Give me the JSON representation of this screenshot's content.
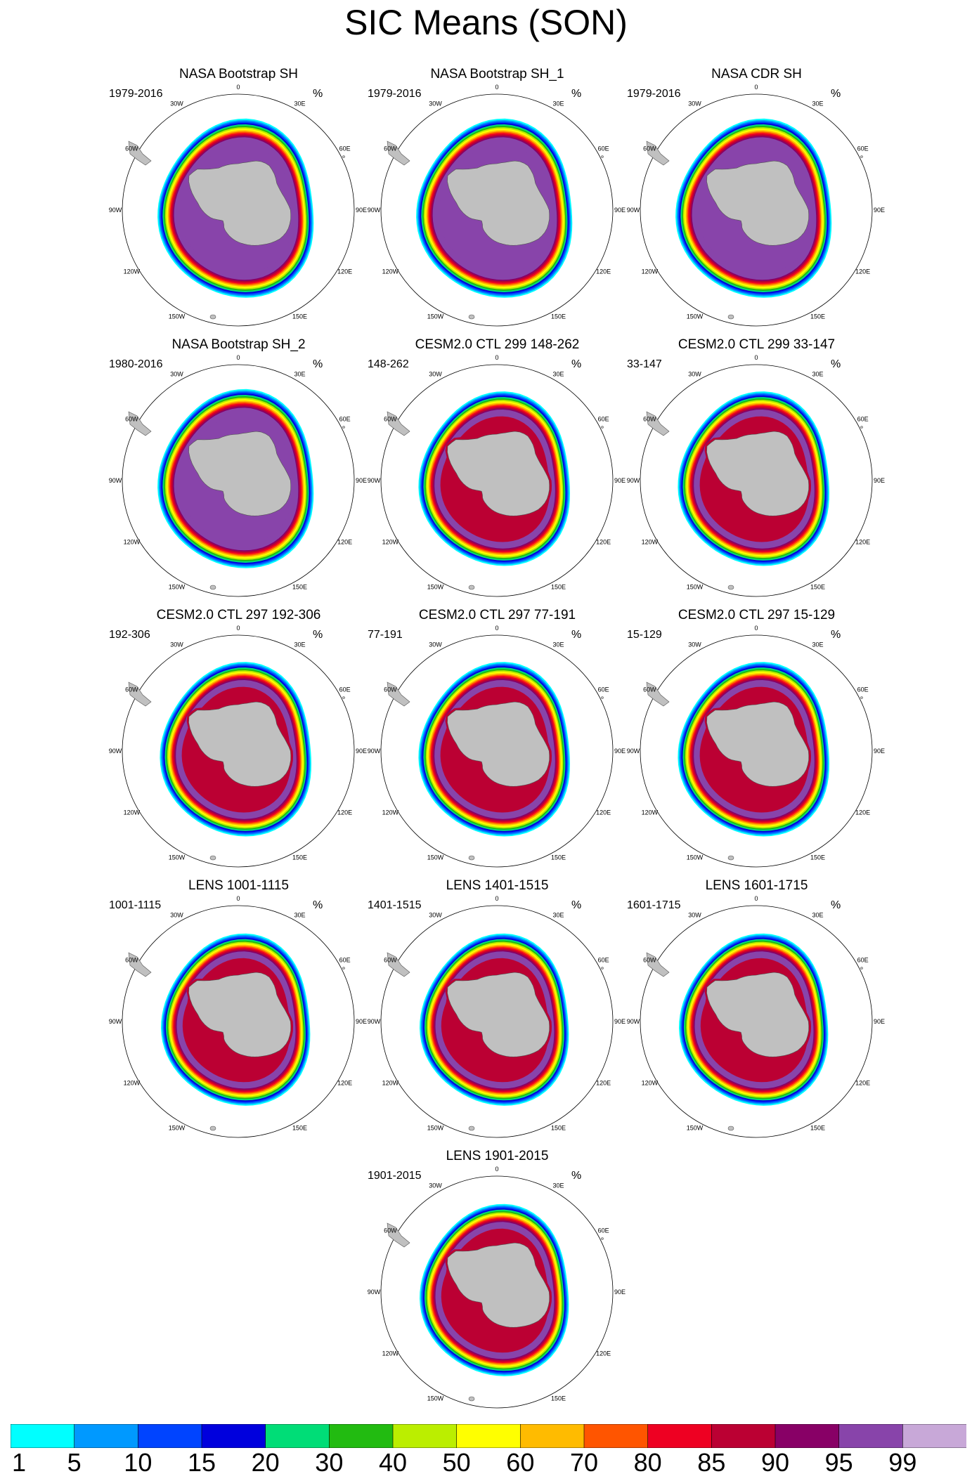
{
  "chart_data": {
    "type": "heatmap",
    "title": "SIC Means (SON)",
    "projection": "south-polar-stereographic",
    "units": "%",
    "longitude_labels": [
      "0",
      "30E",
      "60E",
      "90E",
      "120E",
      "150E",
      "180",
      "150W",
      "120W",
      "90W",
      "60W",
      "30W"
    ],
    "colorbar": {
      "levels": [
        1,
        5,
        10,
        15,
        20,
        30,
        40,
        50,
        60,
        70,
        80,
        85,
        90,
        95,
        99
      ],
      "labels": [
        "1",
        "5",
        "10",
        "15",
        "20",
        "30",
        "40",
        "50",
        "60",
        "70",
        "80",
        "85",
        "90",
        "95",
        "99"
      ],
      "colors": [
        "#00ffff",
        "#0099ff",
        "#0044ff",
        "#0000dd",
        "#00dd77",
        "#22bb11",
        "#bbee00",
        "#ffff00",
        "#ffbb00",
        "#ff5500",
        "#ee0022",
        "#bb0033",
        "#880066",
        "#8844aa",
        "#c8a8d8"
      ]
    },
    "panels": [
      {
        "title": "NASA Bootstrap SH",
        "range": "1979-2016",
        "units": "%",
        "kind": "obs"
      },
      {
        "title": "NASA Bootstrap SH_1",
        "range": "1979-2016",
        "units": "%",
        "kind": "obs"
      },
      {
        "title": "NASA CDR SH",
        "range": "1979-2016",
        "units": "%",
        "kind": "obs"
      },
      {
        "title": "NASA Bootstrap SH_2",
        "range": "1980-2016",
        "units": "%",
        "kind": "obs"
      },
      {
        "title": "CESM2.0 CTL 299 148-262",
        "range": "148-262",
        "units": "%",
        "kind": "model"
      },
      {
        "title": "CESM2.0 CTL 299 33-147",
        "range": "33-147",
        "units": "%",
        "kind": "model"
      },
      {
        "title": "CESM2.0 CTL 297 192-306",
        "range": "192-306",
        "units": "%",
        "kind": "model"
      },
      {
        "title": "CESM2.0 CTL 297 77-191",
        "range": "77-191",
        "units": "%",
        "kind": "model"
      },
      {
        "title": "CESM2.0 CTL 297 15-129",
        "range": "15-129",
        "units": "%",
        "kind": "model"
      },
      {
        "title": "LENS 1001-1115",
        "range": "1001-1115",
        "units": "%",
        "kind": "lens"
      },
      {
        "title": "LENS 1401-1515",
        "range": "1401-1515",
        "units": "%",
        "kind": "lens"
      },
      {
        "title": "LENS 1601-1715",
        "range": "1601-1715",
        "units": "%",
        "kind": "lens"
      },
      {
        "title": "LENS 1901-2015",
        "range": "1901-2015",
        "units": "%",
        "kind": "lens"
      }
    ]
  }
}
